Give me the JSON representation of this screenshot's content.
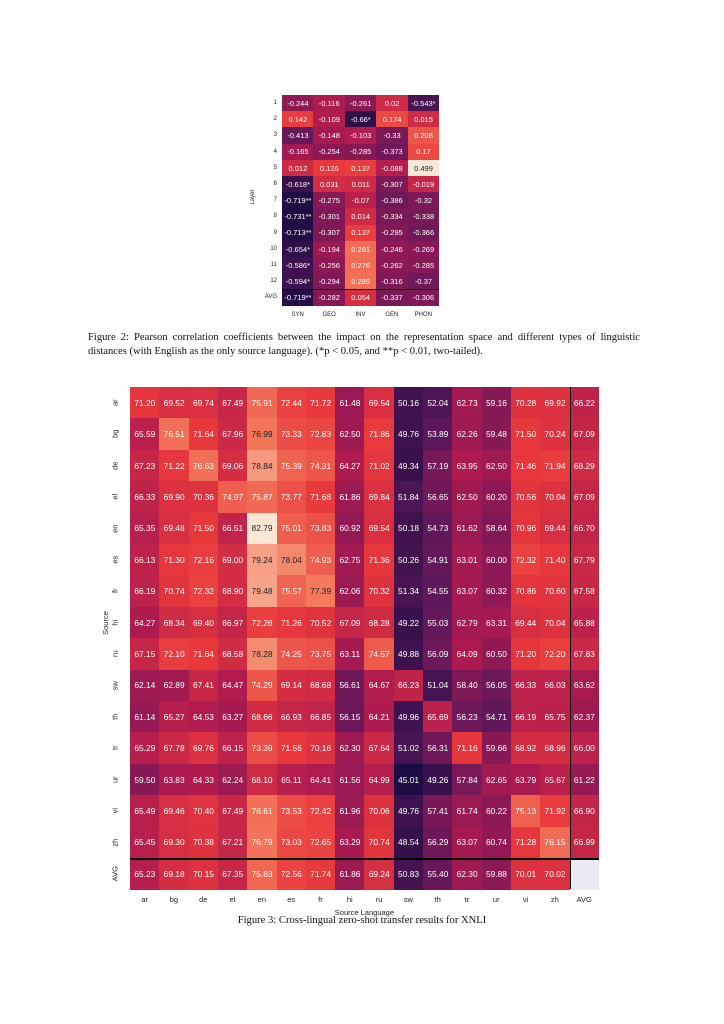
{
  "figure2": {
    "caption": "Figure 2: Pearson correlation coefficients between the impact on the representation space and different types of linguistic distances (with English as the only source language). (*p < 0.05, and **p < 0.01, two-tailed).",
    "ylabel": "Layer",
    "columns": [
      "SYN",
      "GEO",
      "INV",
      "GEN",
      "PHON"
    ],
    "rows": [
      "1",
      "2",
      "3",
      "4",
      "5",
      "6",
      "7",
      "8",
      "9",
      "10",
      "11",
      "12",
      "AVG"
    ],
    "colors": {
      "min": "#1b0c41",
      "mid": "#e8385c",
      "max": "#fbe8d2"
    }
  },
  "figure3": {
    "caption": "Figure 3: Cross-lingual zero-shot transfer results for XNLI",
    "xlabel": "Source Language",
    "ylabel": "Source",
    "columns": [
      "ar",
      "bg",
      "de",
      "el",
      "en",
      "es",
      "fr",
      "hi",
      "ru",
      "sw",
      "th",
      "tr",
      "ur",
      "vi",
      "zh",
      "AVG"
    ],
    "rows": [
      "ar",
      "bg",
      "de",
      "el",
      "en",
      "es",
      "fr",
      "hi",
      "ru",
      "sw",
      "th",
      "tr",
      "ur",
      "vi",
      "zh",
      "AVG"
    ]
  },
  "chart_data": [
    {
      "type": "heatmap",
      "title": "Pearson correlation coefficients (English source)",
      "xlabel": "",
      "ylabel": "Layer",
      "x": [
        "SYN",
        "GEO",
        "INV",
        "GEN",
        "PHON"
      ],
      "y": [
        "1",
        "2",
        "3",
        "4",
        "5",
        "6",
        "7",
        "8",
        "9",
        "10",
        "11",
        "12",
        "AVG"
      ],
      "labels": [
        [
          "-0.244",
          "-0.116",
          "-0.261",
          "0.02",
          "-0.543*"
        ],
        [
          "0.142",
          "-0.109",
          "-0.66*",
          "0.174",
          "0.015"
        ],
        [
          "-0.413",
          "-0.148",
          "-0.103",
          "-0.33",
          "0.208"
        ],
        [
          "-0.165",
          "-0.254",
          "-0.285",
          "-0.373",
          "0.17"
        ],
        [
          "0.012",
          "0.126",
          "0.137",
          "-0.088",
          "0.499"
        ],
        [
          "-0.618*",
          "0.031",
          "0.011",
          "-0.307",
          "-0.019"
        ],
        [
          "-0.719**",
          "-0.275",
          "-0.07",
          "-0.386",
          "-0.32"
        ],
        [
          "-0.731**",
          "-0.301",
          "0.014",
          "-0.334",
          "-0.338"
        ],
        [
          "-0.713**",
          "-0.307",
          "0.137",
          "-0.295",
          "-0.366"
        ],
        [
          "-0.654*",
          "-0.194",
          "0.281",
          "-0.246",
          "-0.269"
        ],
        [
          "-0.586*",
          "-0.256",
          "0.276",
          "-0.262",
          "-0.285"
        ],
        [
          "-0.594*",
          "-0.294",
          "0.289",
          "-0.316",
          "-0.37"
        ],
        [
          "-0.719**",
          "-0.282",
          "0.054",
          "-0.337",
          "-0.306"
        ]
      ],
      "range": [
        -0.75,
        0.5
      ]
    },
    {
      "type": "heatmap",
      "title": "Cross-lingual zero-shot transfer results for XNLI",
      "xlabel": "Source Language",
      "ylabel": "Source",
      "x": [
        "ar",
        "bg",
        "de",
        "el",
        "en",
        "es",
        "fr",
        "hi",
        "ru",
        "sw",
        "th",
        "tr",
        "ur",
        "vi",
        "zh",
        "AVG"
      ],
      "y": [
        "ar",
        "bg",
        "de",
        "el",
        "en",
        "es",
        "fr",
        "hi",
        "ru",
        "sw",
        "th",
        "tr",
        "ur",
        "vi",
        "zh",
        "AVG"
      ],
      "values": [
        [
          71.2,
          69.52,
          69.74,
          67.49,
          75.91,
          72.44,
          71.72,
          61.48,
          69.54,
          50.16,
          52.04,
          62.73,
          59.16,
          70.28,
          69.92,
          66.22
        ],
        [
          65.59,
          76.51,
          71.64,
          67.96,
          76.99,
          73.33,
          72.83,
          62.5,
          71.86,
          49.76,
          53.89,
          62.26,
          59.48,
          71.5,
          70.24,
          67.09
        ],
        [
          67.23,
          71.22,
          76.63,
          69.06,
          78.84,
          75.39,
          74.31,
          64.27,
          71.02,
          49.34,
          57.19,
          63.95,
          62.5,
          71.46,
          71.94,
          68.29
        ],
        [
          66.33,
          69.9,
          70.36,
          74.97,
          75.87,
          73.77,
          71.68,
          61.86,
          69.84,
          51.84,
          56.65,
          62.5,
          60.2,
          70.56,
          70.04,
          67.09
        ],
        [
          65.35,
          69.48,
          71.5,
          66.51,
          82.79,
          75.01,
          73.83,
          60.92,
          69.54,
          50.18,
          54.73,
          61.62,
          58.64,
          70.96,
          69.44,
          66.7
        ],
        [
          66.13,
          71.3,
          72.16,
          69.0,
          79.24,
          78.04,
          74.93,
          62.75,
          71.36,
          50.26,
          54.91,
          63.01,
          60.0,
          72.32,
          71.4,
          67.79
        ],
        [
          66.19,
          70.74,
          72.32,
          68.9,
          79.48,
          75.57,
          77.39,
          62.06,
          70.32,
          51.34,
          54.55,
          63.07,
          60.32,
          70.86,
          70.6,
          67.58
        ],
        [
          64.27,
          68.34,
          69.4,
          66.97,
          72.26,
          71.26,
          70.52,
          67.09,
          68.28,
          49.22,
          55.03,
          62.79,
          63.31,
          69.44,
          70.04,
          65.88
        ],
        [
          67.15,
          72.1,
          71.64,
          68.58,
          78.28,
          74.25,
          73.75,
          63.11,
          74.57,
          49.88,
          56.09,
          64.09,
          60.5,
          71.2,
          72.2,
          67.83
        ],
        [
          62.14,
          62.89,
          67.41,
          64.47,
          74.29,
          69.14,
          68.68,
          56.61,
          64.67,
          66.23,
          51.04,
          58.4,
          56.05,
          66.33,
          66.03,
          63.62
        ],
        [
          61.14,
          65.27,
          64.53,
          63.27,
          68.66,
          66.93,
          66.85,
          56.15,
          64.21,
          49.96,
          65.69,
          56.23,
          54.71,
          66.19,
          65.75,
          62.37
        ],
        [
          65.29,
          67.78,
          69.76,
          66.15,
          73.39,
          71.56,
          70.16,
          62.3,
          67.64,
          51.02,
          56.31,
          71.16,
          59.66,
          68.92,
          68.96,
          66.0
        ],
        [
          59.5,
          63.83,
          64.33,
          62.24,
          68.1,
          65.11,
          64.41,
          61.56,
          64.99,
          45.01,
          49.26,
          57.84,
          62.65,
          63.79,
          65.67,
          61.22
        ],
        [
          65.49,
          69.46,
          70.4,
          67.49,
          76.61,
          73.53,
          72.42,
          61.96,
          70.06,
          49.76,
          57.41,
          61.74,
          60.22,
          75.13,
          71.92,
          66.9
        ],
        [
          65.45,
          69.3,
          70.38,
          67.21,
          76.79,
          73.03,
          72.65,
          63.29,
          70.74,
          48.54,
          56.29,
          63.07,
          60.74,
          71.28,
          76.15,
          66.99
        ],
        [
          65.23,
          69.18,
          70.15,
          67.35,
          75.83,
          72.56,
          71.74,
          61.86,
          69.24,
          50.83,
          55.4,
          62.3,
          59.88,
          70.01,
          70.02,
          null
        ]
      ],
      "range": [
        45,
        83
      ]
    }
  ]
}
